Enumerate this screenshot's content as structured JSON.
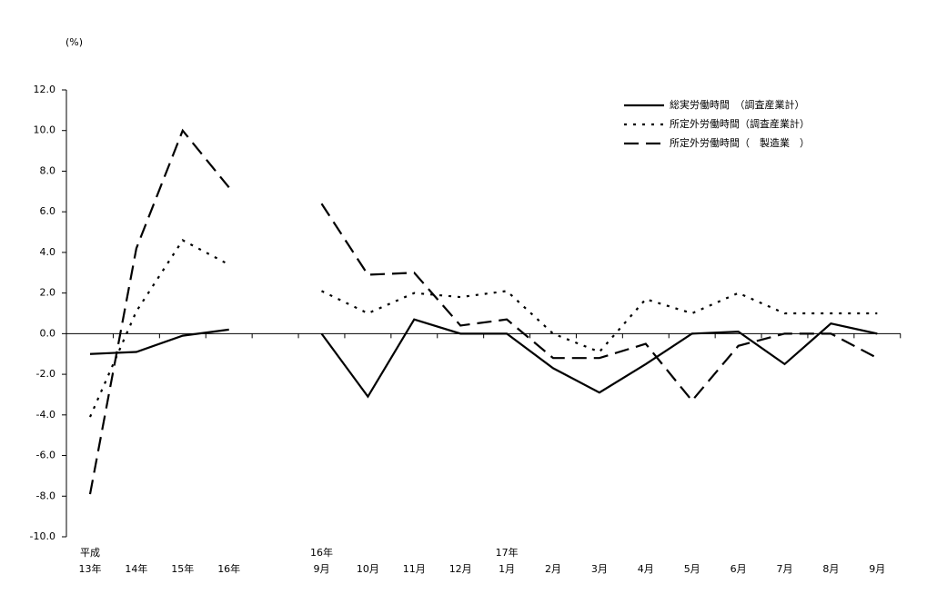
{
  "chart_data": {
    "type": "line",
    "unit_label": "(%)",
    "categories": [
      "13年",
      "14年",
      "15年",
      "16年",
      null,
      "9月",
      "10月",
      "11月",
      "12月",
      "1月",
      "2月",
      "3月",
      "4月",
      "5月",
      "6月",
      "7月",
      "8月",
      "9月"
    ],
    "category_groups": [
      "平成",
      null,
      null,
      null,
      null,
      "16年",
      null,
      null,
      null,
      "17年",
      null,
      null,
      null,
      null,
      null,
      null,
      null,
      null
    ],
    "series": [
      {
        "name": "総実労働時間　（調査産業計）",
        "color": "#000000",
        "dash": "solid",
        "values": [
          -1.0,
          -0.9,
          -0.1,
          0.2,
          null,
          0.0,
          -3.1,
          0.7,
          0.0,
          0.0,
          -1.7,
          -2.9,
          -1.5,
          0.0,
          0.1,
          -1.5,
          0.5,
          0.0
        ]
      },
      {
        "name": "所定外労働時間（調査産業計）",
        "color": "#000000",
        "dash": "dotted",
        "values": [
          -4.1,
          1.1,
          4.6,
          3.4,
          null,
          2.1,
          1.0,
          2.0,
          1.8,
          2.1,
          0.0,
          -0.9,
          1.7,
          1.0,
          2.0,
          1.0,
          1.0,
          1.0
        ]
      },
      {
        "name": "所定外労働時間（　製造業　）",
        "color": "#000000",
        "dash": "dashed",
        "values": [
          -7.9,
          4.2,
          10.0,
          7.2,
          null,
          6.4,
          2.9,
          3.0,
          0.4,
          0.7,
          -1.2,
          -1.2,
          -0.5,
          -3.3,
          -0.6,
          0.0,
          0.0,
          -1.2
        ]
      }
    ],
    "ylim": [
      -10,
      12
    ],
    "yticks": [
      {
        "value": -10,
        "label": "-10.0"
      },
      {
        "value": -8,
        "label": "-8.0"
      },
      {
        "value": -6,
        "label": "-6.0"
      },
      {
        "value": -4,
        "label": "-4.0"
      },
      {
        "value": -2,
        "label": "-2.0"
      },
      {
        "value": 0,
        "label": "0.0"
      },
      {
        "value": 2,
        "label": "2.0"
      },
      {
        "value": 4,
        "label": "4.0"
      },
      {
        "value": 6,
        "label": "6.0"
      },
      {
        "value": 8,
        "label": "8.0"
      },
      {
        "value": 10,
        "label": "10.0"
      },
      {
        "value": 12,
        "label": "12.0"
      }
    ],
    "legend": "top-right"
  }
}
